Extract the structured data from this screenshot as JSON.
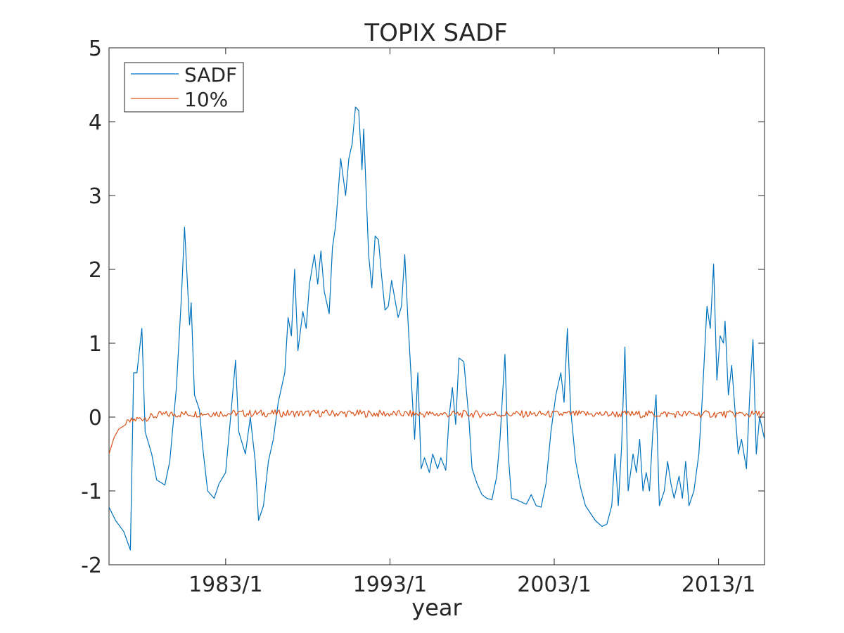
{
  "chart_data": {
    "type": "line",
    "title": "TOPIX SADF",
    "xlabel": "year",
    "ylabel": "",
    "xlim": [
      1975.9,
      2015.8
    ],
    "ylim": [
      -2,
      5
    ],
    "yticks": [
      -2,
      -1,
      0,
      1,
      2,
      3,
      4,
      5
    ],
    "xticks": [
      {
        "label": "1983/1",
        "x": 1983.0
      },
      {
        "label": "1993/1",
        "x": 1993.0
      },
      {
        "label": "2003/1",
        "x": 2003.0
      },
      {
        "label": "2013/1",
        "x": 2013.0
      }
    ],
    "grid": false,
    "legend_position": "top-left",
    "series": [
      {
        "name": "SADF",
        "color": "#0072BD",
        "points": [
          [
            1975.9,
            -1.22
          ],
          [
            1976.3,
            -1.4
          ],
          [
            1976.8,
            -1.55
          ],
          [
            1977.2,
            -1.8
          ],
          [
            1977.4,
            0.6
          ],
          [
            1977.6,
            0.6
          ],
          [
            1977.9,
            1.2
          ],
          [
            1978.1,
            -0.2
          ],
          [
            1978.5,
            -0.5
          ],
          [
            1978.8,
            -0.85
          ],
          [
            1979.3,
            -0.92
          ],
          [
            1979.6,
            -0.6
          ],
          [
            1980.0,
            0.4
          ],
          [
            1980.3,
            1.6
          ],
          [
            1980.5,
            2.57
          ],
          [
            1980.8,
            1.25
          ],
          [
            1980.9,
            1.55
          ],
          [
            1981.1,
            0.3
          ],
          [
            1981.4,
            0.1
          ],
          [
            1981.6,
            -0.4
          ],
          [
            1981.9,
            -1.0
          ],
          [
            1982.3,
            -1.1
          ],
          [
            1982.6,
            -0.9
          ],
          [
            1983.0,
            -0.75
          ],
          [
            1983.3,
            0.0
          ],
          [
            1983.6,
            0.77
          ],
          [
            1983.8,
            -0.2
          ],
          [
            1984.2,
            -0.5
          ],
          [
            1984.5,
            0.0
          ],
          [
            1984.8,
            -0.6
          ],
          [
            1985.0,
            -1.4
          ],
          [
            1985.3,
            -1.2
          ],
          [
            1985.6,
            -0.6
          ],
          [
            1985.9,
            -0.3
          ],
          [
            1986.2,
            0.2
          ],
          [
            1986.6,
            0.6
          ],
          [
            1986.8,
            1.35
          ],
          [
            1987.0,
            1.1
          ],
          [
            1987.2,
            2.0
          ],
          [
            1987.4,
            0.9
          ],
          [
            1987.7,
            1.43
          ],
          [
            1987.9,
            1.2
          ],
          [
            1988.1,
            1.8
          ],
          [
            1988.4,
            2.2
          ],
          [
            1988.6,
            1.8
          ],
          [
            1988.8,
            2.25
          ],
          [
            1989.0,
            1.7
          ],
          [
            1989.3,
            1.4
          ],
          [
            1989.5,
            2.3
          ],
          [
            1989.7,
            2.6
          ],
          [
            1990.0,
            3.5
          ],
          [
            1990.3,
            3.0
          ],
          [
            1990.5,
            3.5
          ],
          [
            1990.7,
            3.7
          ],
          [
            1990.9,
            4.2
          ],
          [
            1991.1,
            4.15
          ],
          [
            1991.3,
            3.35
          ],
          [
            1991.4,
            3.9
          ],
          [
            1991.7,
            2.2
          ],
          [
            1991.9,
            1.75
          ],
          [
            1992.1,
            2.45
          ],
          [
            1992.3,
            2.4
          ],
          [
            1992.5,
            1.9
          ],
          [
            1992.7,
            1.45
          ],
          [
            1992.9,
            1.5
          ],
          [
            1993.1,
            1.85
          ],
          [
            1993.3,
            1.6
          ],
          [
            1993.5,
            1.35
          ],
          [
            1993.7,
            1.5
          ],
          [
            1993.9,
            2.2
          ],
          [
            1994.1,
            1.3
          ],
          [
            1994.3,
            0.5
          ],
          [
            1994.5,
            -0.3
          ],
          [
            1994.7,
            0.6
          ],
          [
            1994.9,
            -0.7
          ],
          [
            1995.1,
            -0.55
          ],
          [
            1995.4,
            -0.75
          ],
          [
            1995.6,
            -0.5
          ],
          [
            1995.9,
            -0.7
          ],
          [
            1996.1,
            -0.55
          ],
          [
            1996.4,
            -0.72
          ],
          [
            1996.6,
            0.0
          ],
          [
            1996.8,
            0.4
          ],
          [
            1997.0,
            -0.1
          ],
          [
            1997.2,
            0.8
          ],
          [
            1997.5,
            0.75
          ],
          [
            1997.8,
            0.0
          ],
          [
            1998.0,
            -0.7
          ],
          [
            1998.3,
            -0.9
          ],
          [
            1998.6,
            -1.05
          ],
          [
            1998.9,
            -1.1
          ],
          [
            1999.2,
            -1.12
          ],
          [
            1999.5,
            -0.8
          ],
          [
            1999.7,
            -0.3
          ],
          [
            2000.0,
            0.85
          ],
          [
            2000.2,
            -0.5
          ],
          [
            2000.4,
            -1.1
          ],
          [
            2000.7,
            -1.12
          ],
          [
            2001.0,
            -1.15
          ],
          [
            2001.3,
            -1.18
          ],
          [
            2001.6,
            -1.05
          ],
          [
            2001.9,
            -1.2
          ],
          [
            2002.2,
            -1.22
          ],
          [
            2002.5,
            -0.9
          ],
          [
            2002.8,
            -0.2
          ],
          [
            2003.1,
            0.3
          ],
          [
            2003.4,
            0.6
          ],
          [
            2003.6,
            0.2
          ],
          [
            2003.8,
            1.2
          ],
          [
            2004.0,
            0.1
          ],
          [
            2004.3,
            -0.6
          ],
          [
            2004.6,
            -0.95
          ],
          [
            2004.9,
            -1.2
          ],
          [
            2005.2,
            -1.3
          ],
          [
            2005.5,
            -1.4
          ],
          [
            2005.9,
            -1.48
          ],
          [
            2006.2,
            -1.45
          ],
          [
            2006.5,
            -1.2
          ],
          [
            2006.7,
            -0.5
          ],
          [
            2006.9,
            -1.2
          ],
          [
            2007.1,
            -0.4
          ],
          [
            2007.3,
            0.95
          ],
          [
            2007.5,
            -1.0
          ],
          [
            2007.8,
            -0.5
          ],
          [
            2008.0,
            -0.75
          ],
          [
            2008.2,
            -0.3
          ],
          [
            2008.4,
            -1.0
          ],
          [
            2008.6,
            -0.75
          ],
          [
            2008.8,
            -1.0
          ],
          [
            2009.0,
            -0.2
          ],
          [
            2009.2,
            0.3
          ],
          [
            2009.4,
            -1.2
          ],
          [
            2009.7,
            -1.0
          ],
          [
            2009.9,
            -0.6
          ],
          [
            2010.1,
            -0.9
          ],
          [
            2010.3,
            -1.1
          ],
          [
            2010.6,
            -0.8
          ],
          [
            2010.8,
            -1.1
          ],
          [
            2011.0,
            -0.6
          ],
          [
            2011.2,
            -1.2
          ],
          [
            2011.5,
            -1.0
          ],
          [
            2011.8,
            -0.5
          ],
          [
            2012.0,
            0.2
          ],
          [
            2012.3,
            1.5
          ],
          [
            2012.5,
            1.2
          ],
          [
            2012.7,
            2.07
          ],
          [
            2012.9,
            0.5
          ],
          [
            2013.1,
            1.1
          ],
          [
            2013.3,
            1.0
          ],
          [
            2013.4,
            1.3
          ],
          [
            2013.6,
            0.3
          ],
          [
            2013.8,
            0.7
          ],
          [
            2014.0,
            0.1
          ],
          [
            2014.2,
            -0.5
          ],
          [
            2014.4,
            -0.3
          ],
          [
            2014.7,
            -0.7
          ],
          [
            2014.9,
            0.3
          ],
          [
            2015.1,
            1.05
          ],
          [
            2015.3,
            -0.5
          ],
          [
            2015.5,
            0.0
          ],
          [
            2015.8,
            -0.3
          ]
        ]
      },
      {
        "name": "10%",
        "color": "#D95319",
        "points": [
          [
            1975.9,
            -0.5
          ],
          [
            1976.2,
            -0.28
          ],
          [
            1976.5,
            -0.16
          ],
          [
            1976.8,
            -0.12
          ],
          [
            1977.1,
            -0.07
          ],
          [
            1977.4,
            -0.04
          ],
          [
            1977.8,
            -0.02
          ],
          [
            1978.4,
            0.0
          ],
          [
            1979.0,
            0.03
          ],
          [
            1980.0,
            0.04
          ],
          [
            1982.0,
            0.05
          ],
          [
            1985.0,
            0.05
          ],
          [
            1990.0,
            0.05
          ],
          [
            1995.0,
            0.04
          ],
          [
            2000.0,
            0.04
          ],
          [
            2005.0,
            0.04
          ],
          [
            2010.0,
            0.04
          ],
          [
            2015.8,
            0.04
          ]
        ]
      }
    ]
  }
}
